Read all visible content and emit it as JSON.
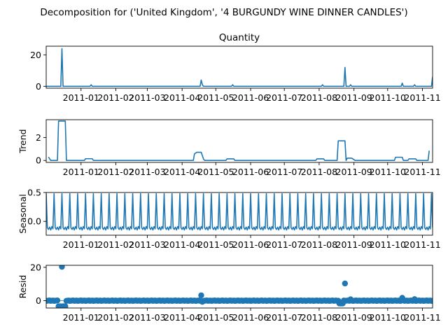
{
  "suptitle": "Decomposition for ('United Kingdom', '4 BURGUNDY WINE DINNER CANDLES')",
  "chart_data": [
    {
      "type": "line",
      "title": "Quantity",
      "ylabel": "",
      "ylim": [
        -1.2,
        25.5
      ],
      "yticks": [
        0,
        20
      ],
      "grid": false,
      "x_range": [
        "2010-12-01",
        "2011-11-10"
      ],
      "xtick_labels": [
        "2011-01",
        "2011-02",
        "2011-03",
        "2011-04",
        "2011-05",
        "2011-06",
        "2011-07",
        "2011-08",
        "2011-09",
        "2011-10",
        "2011-11"
      ],
      "series": [
        {
          "values": [
            [
              "2010-12-01",
              0
            ],
            [
              "2010-12-14",
              0
            ],
            [
              "2010-12-15",
              24
            ],
            [
              "2010-12-16",
              0
            ],
            [
              "2011-01-09",
              0
            ],
            [
              "2011-01-10",
              1
            ],
            [
              "2011-01-11",
              0
            ],
            [
              "2011-04-17",
              0
            ],
            [
              "2011-04-18",
              4
            ],
            [
              "2011-04-19",
              1
            ],
            [
              "2011-04-20",
              0
            ],
            [
              "2011-05-15",
              0
            ],
            [
              "2011-05-16",
              1
            ],
            [
              "2011-05-17",
              0
            ],
            [
              "2011-08-03",
              0
            ],
            [
              "2011-08-04",
              1
            ],
            [
              "2011-08-05",
              0
            ],
            [
              "2011-08-23",
              0
            ],
            [
              "2011-08-24",
              12
            ],
            [
              "2011-08-25",
              0
            ],
            [
              "2011-08-28",
              0
            ],
            [
              "2011-08-29",
              1
            ],
            [
              "2011-08-30",
              0
            ],
            [
              "2011-10-13",
              0
            ],
            [
              "2011-10-14",
              2
            ],
            [
              "2011-10-15",
              0
            ],
            [
              "2011-10-24",
              0
            ],
            [
              "2011-10-25",
              1
            ],
            [
              "2011-10-26",
              0
            ],
            [
              "2011-11-09",
              0
            ],
            [
              "2011-11-10",
              6
            ]
          ]
        }
      ]
    },
    {
      "type": "line",
      "title": "",
      "ylabel": "Trend",
      "ylim": [
        -0.17,
        3.55
      ],
      "yticks": [
        0,
        2
      ],
      "grid": false,
      "x_range": [
        "2010-12-01",
        "2011-11-10"
      ],
      "xtick_labels": [
        "2011-01",
        "2011-02",
        "2011-03",
        "2011-04",
        "2011-05",
        "2011-06",
        "2011-07",
        "2011-08",
        "2011-09",
        "2011-10",
        "2011-11"
      ],
      "series": [
        {
          "values": [
            [
              "2010-12-03",
              0.3
            ],
            [
              "2010-12-05",
              0
            ],
            [
              "2010-12-11",
              0
            ],
            [
              "2010-12-12",
              3.43
            ],
            [
              "2010-12-18",
              3.43
            ],
            [
              "2010-12-19",
              0
            ],
            [
              "2011-01-04",
              0
            ],
            [
              "2011-01-05",
              0.15
            ],
            [
              "2011-01-11",
              0.15
            ],
            [
              "2011-01-12",
              0
            ],
            [
              "2011-04-11",
              0
            ],
            [
              "2011-04-12",
              0.57
            ],
            [
              "2011-04-14",
              0.71
            ],
            [
              "2011-04-18",
              0.71
            ],
            [
              "2011-04-20",
              0.14
            ],
            [
              "2011-04-21",
              0
            ],
            [
              "2011-05-10",
              0
            ],
            [
              "2011-05-11",
              0.14
            ],
            [
              "2011-05-17",
              0.14
            ],
            [
              "2011-05-18",
              0
            ],
            [
              "2011-07-29",
              0
            ],
            [
              "2011-07-30",
              0.14
            ],
            [
              "2011-08-05",
              0.14
            ],
            [
              "2011-08-06",
              0
            ],
            [
              "2011-08-17",
              0
            ],
            [
              "2011-08-18",
              1.71
            ],
            [
              "2011-08-24",
              1.71
            ],
            [
              "2011-08-25",
              0
            ],
            [
              "2011-08-26",
              0.2
            ],
            [
              "2011-08-30",
              0.2
            ],
            [
              "2011-09-02",
              0
            ],
            [
              "2011-10-07",
              0
            ],
            [
              "2011-10-08",
              0.28
            ],
            [
              "2011-10-14",
              0.28
            ],
            [
              "2011-10-15",
              0
            ],
            [
              "2011-10-19",
              0
            ],
            [
              "2011-10-20",
              0.14
            ],
            [
              "2011-10-26",
              0.14
            ],
            [
              "2011-10-27",
              0
            ],
            [
              "2011-11-06",
              0
            ],
            [
              "2011-11-07",
              0.85
            ]
          ]
        }
      ]
    },
    {
      "type": "line",
      "title": "",
      "ylabel": "Seasonal",
      "ylim": [
        -0.24,
        0.5
      ],
      "yticks": [
        0.0,
        0.5
      ],
      "ytick_labels": [
        "0.0",
        "0.5"
      ],
      "grid": false,
      "x_range": [
        "2010-12-01",
        "2011-11-10"
      ],
      "xtick_labels": [
        "2011-01",
        "2011-02",
        "2011-03",
        "2011-04",
        "2011-05",
        "2011-06",
        "2011-07",
        "2011-08",
        "2011-09",
        "2011-10",
        "2011-11"
      ],
      "series": [
        {
          "period_days": 7,
          "pattern": [
            0.48,
            -0.11,
            -0.14,
            -0.1,
            -0.15,
            -0.09,
            -0.13
          ],
          "start": "2010-12-01",
          "end": "2011-11-10"
        }
      ]
    },
    {
      "type": "scatter",
      "title": "",
      "ylabel": "Resid",
      "ylim": [
        -4.4,
        21.2
      ],
      "yticks": [
        0,
        20
      ],
      "grid": false,
      "baseline": 0,
      "x_range": [
        "2010-12-01",
        "2011-11-10"
      ],
      "xtick_labels": [
        "2011-01",
        "2011-02",
        "2011-03",
        "2011-04",
        "2011-05",
        "2011-06",
        "2011-07",
        "2011-08",
        "2011-09",
        "2011-10",
        "2011-11"
      ],
      "series": [
        {
          "outliers": [
            [
              "2010-12-12",
              -3.4
            ],
            [
              "2010-12-13",
              -3.4
            ],
            [
              "2010-12-14",
              -3.4
            ],
            [
              "2010-12-15",
              20.3
            ],
            [
              "2010-12-16",
              -3.4
            ],
            [
              "2010-12-17",
              -3.4
            ],
            [
              "2010-12-18",
              -3.4
            ],
            [
              "2011-04-18",
              3.2
            ],
            [
              "2011-04-19",
              -0.7
            ],
            [
              "2011-08-19",
              -1.7
            ],
            [
              "2011-08-20",
              -1.7
            ],
            [
              "2011-08-21",
              -1.7
            ],
            [
              "2011-08-22",
              -1.7
            ],
            [
              "2011-08-24",
              10.3
            ],
            [
              "2011-08-29",
              0.8
            ],
            [
              "2011-10-14",
              1.7
            ],
            [
              "2011-10-25",
              0.9
            ]
          ]
        }
      ]
    }
  ]
}
